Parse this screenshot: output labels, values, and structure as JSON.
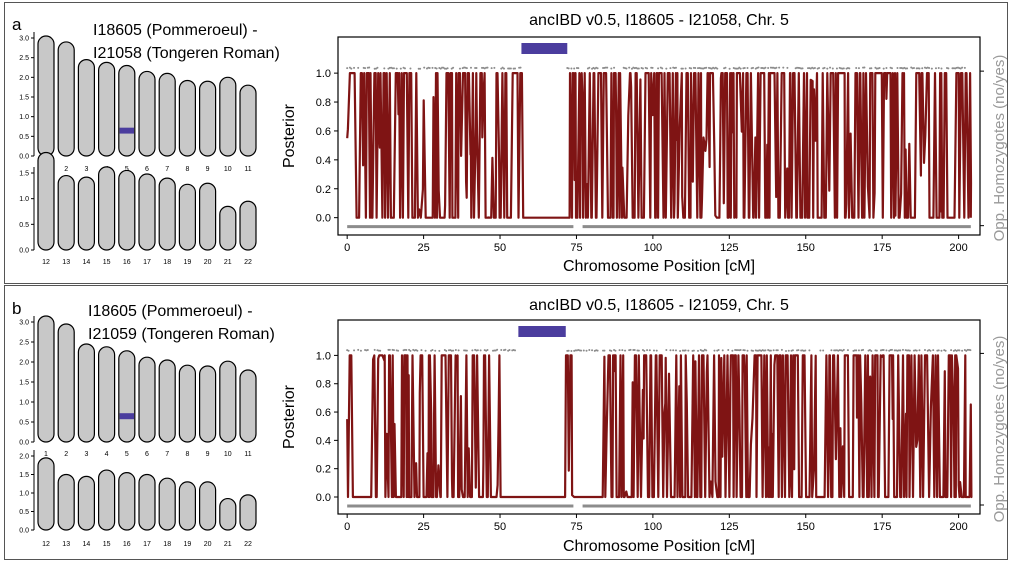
{
  "colors": {
    "posterior": "#7f1414",
    "ibd_segment": "#4b3d9e",
    "chromosome_fill": "#c8c8c8",
    "chromosome_highlight": "#4b3d9e",
    "opp_homozygote_dots": "#8c8c8c",
    "right_axis_label": "#999999"
  },
  "panels": [
    {
      "letter": "a",
      "pair_title_line1": "I18605 (Pommeroeul) -",
      "pair_title_line2": "I21058 (Tongeren Roman)",
      "karyotype": {
        "row1": {
          "labels": [
            "1",
            "2",
            "3",
            "4",
            "5",
            "6",
            "7",
            "8",
            "9",
            "10",
            "11"
          ],
          "lengths_morgan": [
            3.05,
            2.9,
            2.45,
            2.38,
            2.3,
            2.15,
            2.1,
            1.92,
            1.9,
            2.0,
            1.8
          ],
          "yticks": [
            "0.0",
            "0.5",
            "1.0",
            "1.5",
            "2.0",
            "2.5",
            "3.0"
          ]
        },
        "row2": {
          "labels": [
            "12",
            "13",
            "14",
            "15",
            "16",
            "17",
            "18",
            "19",
            "20",
            "21",
            "22"
          ],
          "lengths_morgan": [
            1.9,
            1.45,
            1.42,
            1.62,
            1.55,
            1.48,
            1.4,
            1.28,
            1.3,
            0.85,
            0.95
          ],
          "yticks": [
            "0.0",
            "0.5",
            "1.0",
            "1.5"
          ]
        },
        "highlight": {
          "chromosome": "5",
          "row": "row1",
          "from_morgan": 0.57,
          "to_morgan": 0.72
        }
      },
      "chart_data": {
        "type": "line",
        "title": "ancIBD v0.5, I18605 - I21058, Chr. 5",
        "xlabel": "Chromosome Position [cM]",
        "ylabel": "Posterior",
        "right_ylabel": "Opp. Homozygotes (no/yes)",
        "xlim": [
          -3,
          207
        ],
        "ylim": [
          -0.12,
          1.25
        ],
        "xticks": [
          0,
          25,
          50,
          75,
          100,
          125,
          150,
          175,
          200
        ],
        "yticks": [
          0.0,
          0.2,
          0.4,
          0.6,
          0.8,
          1.0
        ],
        "ibd_segments": [
          [
            57,
            72
          ]
        ],
        "flat_regions": [
          [
            1.5,
            3,
            1.0
          ],
          [
            4,
            5,
            1.0
          ],
          [
            25.5,
            28,
            0.0
          ],
          [
            46.5,
            47.5,
            0.0
          ],
          [
            57.5,
            72,
            0.0
          ],
          [
            96,
            97.5,
            0.0
          ],
          [
            180,
            181,
            0.0
          ],
          [
            196,
            198,
            0.0
          ]
        ],
        "gaps": [
          [
            57.5,
            72
          ]
        ],
        "opp_homozygote_dots": {
          "x_start": 0,
          "x_end": 204,
          "gap": [
            57,
            72
          ]
        }
      }
    },
    {
      "letter": "b",
      "pair_title_line1": "I18605 (Pommeroeul) -",
      "pair_title_line2": "I21059 (Tongeren Roman)",
      "karyotype": {
        "row1": {
          "labels": [
            "1",
            "2",
            "3",
            "4",
            "5",
            "6",
            "7",
            "8",
            "9",
            "10",
            "11"
          ],
          "lengths_morgan": [
            3.15,
            2.95,
            2.45,
            2.38,
            2.28,
            2.12,
            2.05,
            1.92,
            1.9,
            2.02,
            1.8
          ],
          "yticks": [
            "0.0",
            "0.5",
            "1.0",
            "1.5",
            "2.0",
            "2.5",
            "3.0"
          ]
        },
        "row2": {
          "labels": [
            "12",
            "13",
            "14",
            "15",
            "16",
            "17",
            "18",
            "19",
            "20",
            "21",
            "22"
          ],
          "lengths_morgan": [
            1.95,
            1.5,
            1.45,
            1.62,
            1.55,
            1.5,
            1.4,
            1.3,
            1.3,
            0.85,
            0.95
          ],
          "yticks": [
            "0.0",
            "0.5",
            "1.0",
            "1.5",
            "2.0"
          ]
        },
        "highlight": {
          "chromosome": "5",
          "row": "row1",
          "from_morgan": 0.57,
          "to_morgan": 0.72
        }
      },
      "chart_data": {
        "type": "line",
        "title": "ancIBD v0.5, I18605 - I21059, Chr. 5",
        "xlabel": "Chromosome Position [cM]",
        "ylabel": "Posterior",
        "right_ylabel": "Opp. Homozygotes (no/yes)",
        "xlim": [
          -3,
          207
        ],
        "ylim": [
          -0.12,
          1.25
        ],
        "xticks": [
          0,
          25,
          50,
          75,
          100,
          125,
          150,
          175,
          200
        ],
        "yticks": [
          0.0,
          0.2,
          0.4,
          0.6,
          0.8,
          1.0
        ],
        "ibd_segments": [
          [
            56,
            71.5
          ]
        ],
        "flat_regions": [
          [
            1.5,
            6,
            0.0
          ],
          [
            6,
            8,
            0.0
          ],
          [
            21.5,
            22.5,
            0.0
          ],
          [
            47.5,
            49,
            0.0
          ],
          [
            50,
            56,
            0.0
          ],
          [
            56,
            71.5,
            0.0
          ],
          [
            74,
            84,
            0.0
          ],
          [
            114,
            115,
            0.0
          ],
          [
            154,
            156,
            0.0
          ],
          [
            201,
            202,
            0.0
          ]
        ],
        "gaps": [
          [
            56,
            71.5
          ]
        ],
        "opp_homozygote_dots": {
          "x_start": 0,
          "x_end": 204,
          "gap": [
            56,
            71.5
          ]
        }
      }
    }
  ]
}
